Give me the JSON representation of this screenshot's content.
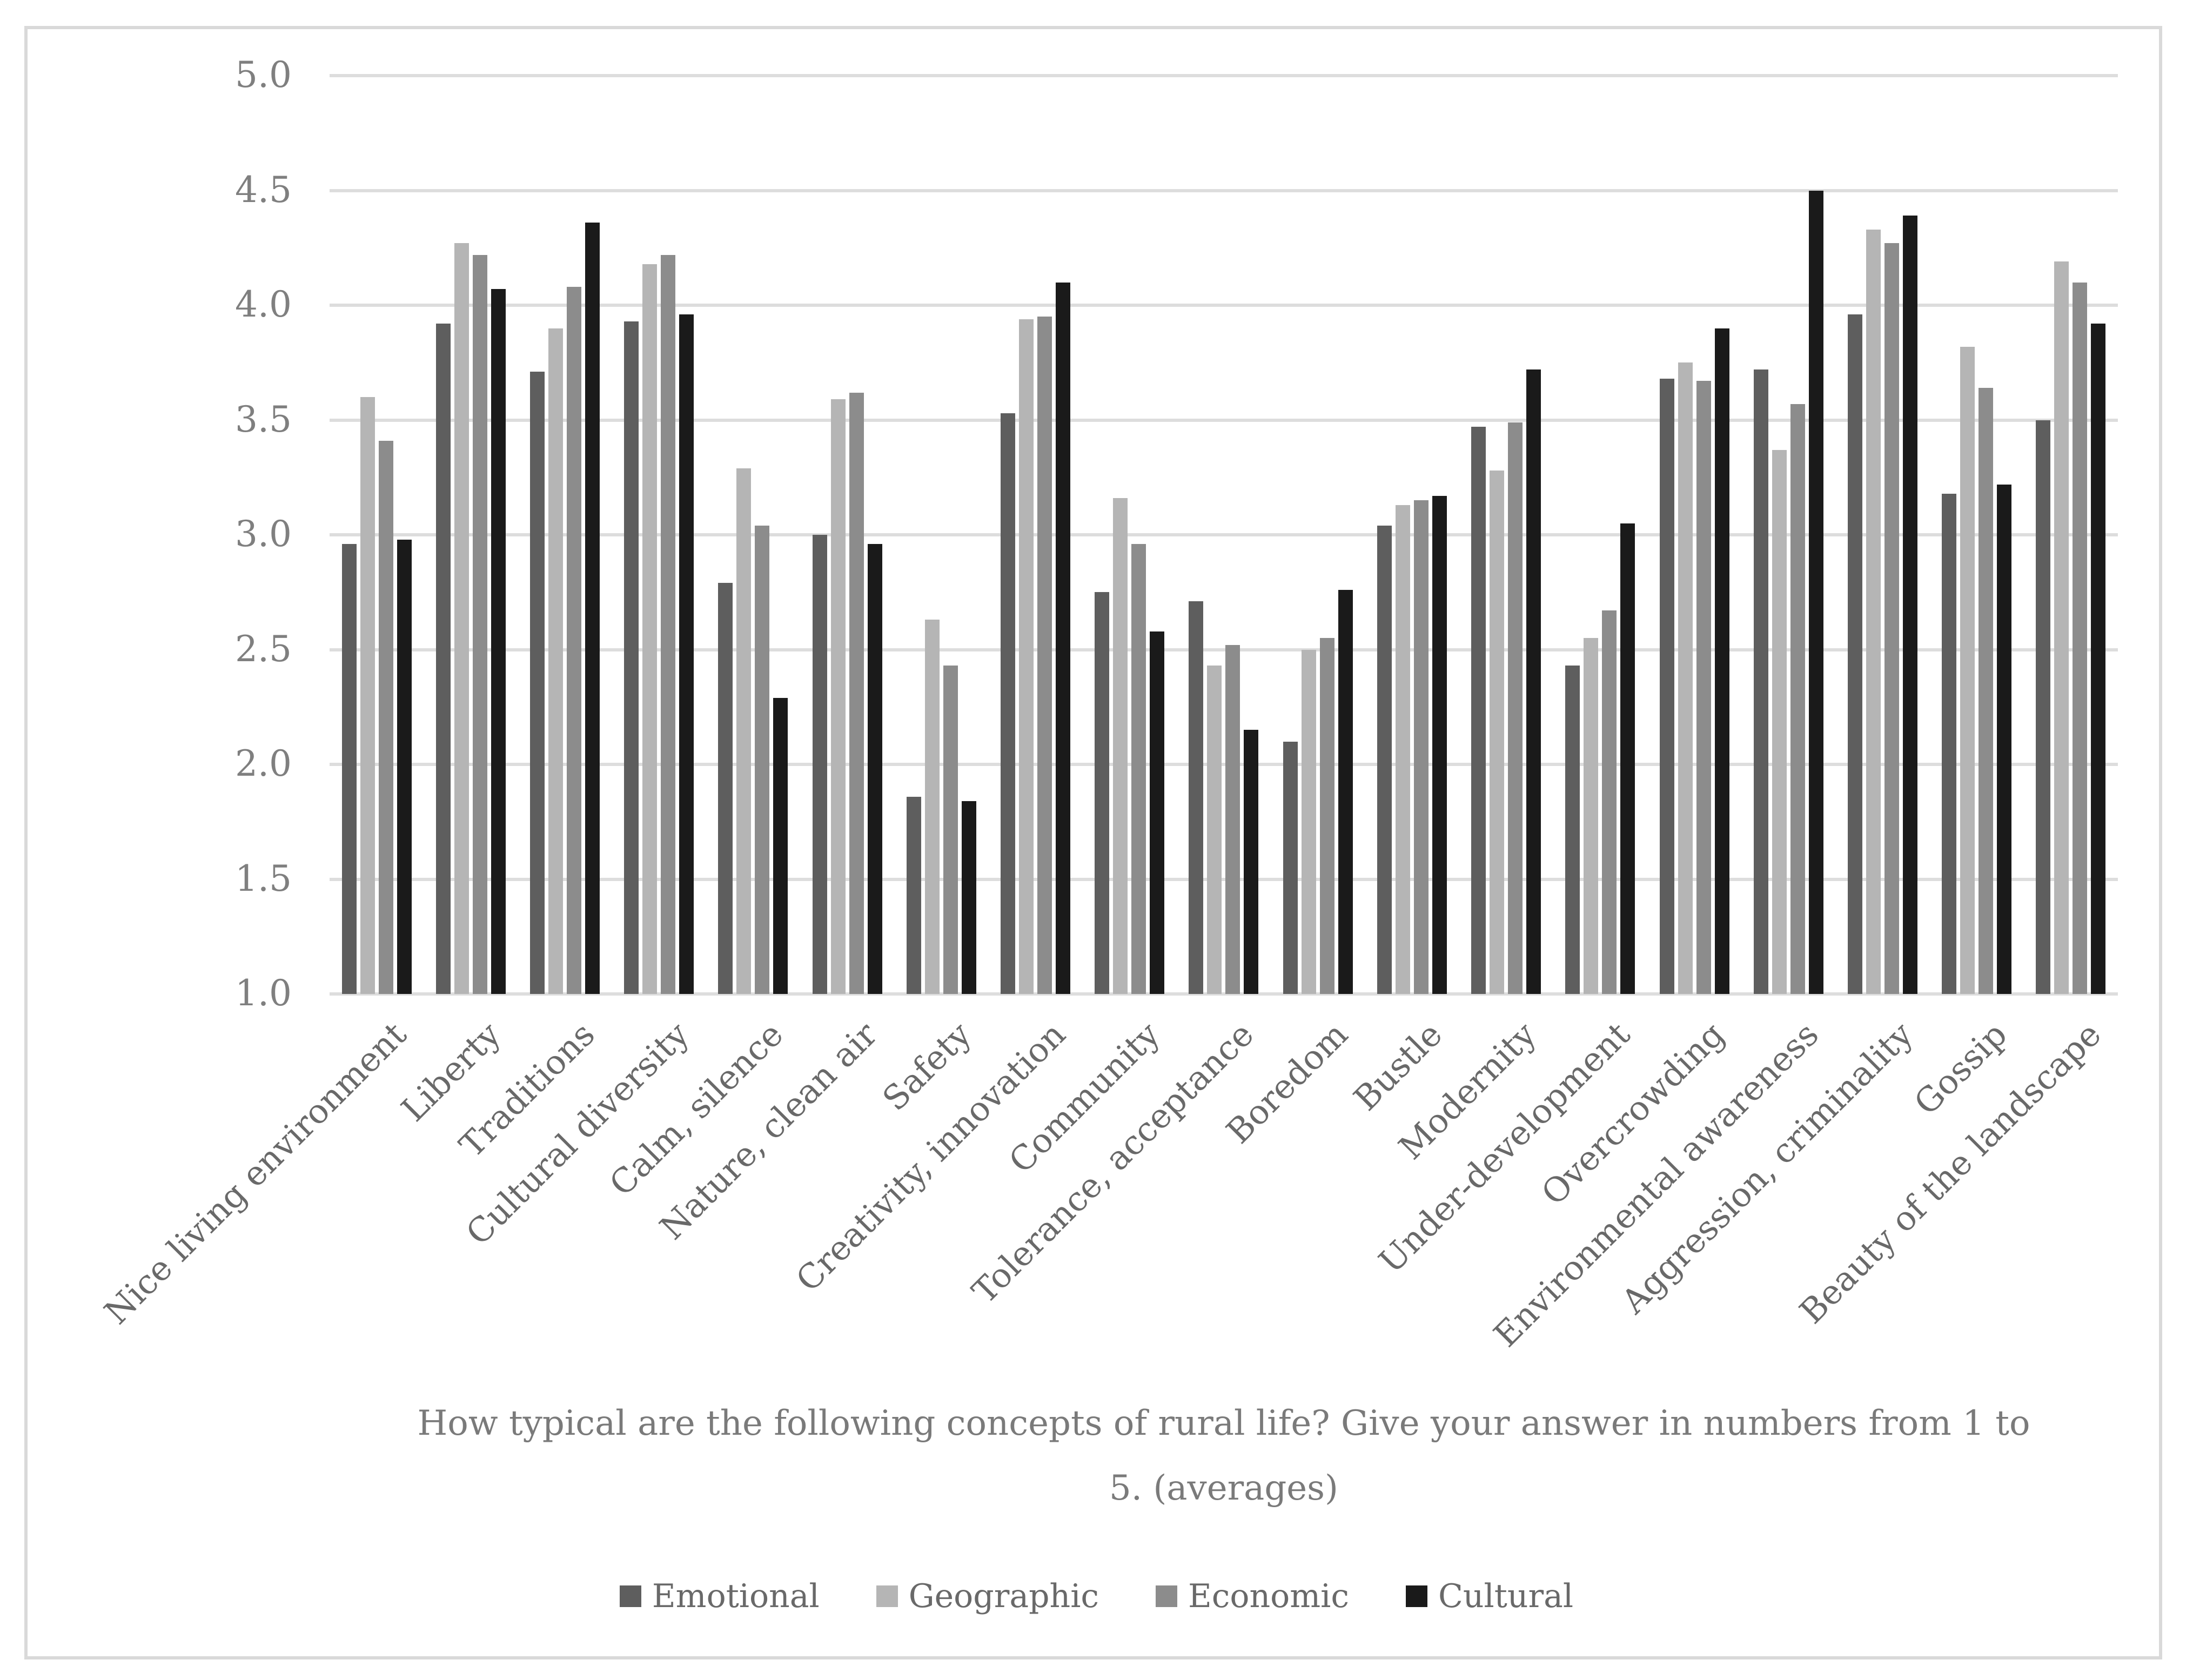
{
  "figure": {
    "title_line1": "How typical are the following concepts of rural life? Give your answer in numbers from 1 to",
    "title_line2": "5. (averages)"
  },
  "chart_data": {
    "type": "bar",
    "title": "How typical are the following concepts of rural life? Give your answer in numbers from 1 to 5. (averages)",
    "categories": [
      "Nice living environment",
      "Liberty",
      "Traditions",
      "Cultural diversity",
      "Calm, silence",
      "Nature, clean air",
      "Safety",
      "Creativity, innovation",
      "Community",
      "Tolerance, acceptance",
      "Boredom",
      "Bustle",
      "Modernity",
      "Under-development",
      "Overcrowding",
      "Environmental awareness",
      "Aggression, criminality",
      "Gossip",
      "Beauty of the landscape"
    ],
    "series": [
      {
        "name": "Emotional",
        "color": "#5E5E5E",
        "values": [
          2.96,
          3.92,
          3.71,
          3.93,
          2.79,
          3.0,
          1.86,
          3.53,
          2.75,
          2.71,
          2.1,
          3.04,
          3.47,
          2.43,
          3.68,
          3.72,
          3.96,
          3.18,
          3.5
        ]
      },
      {
        "name": "Geographic",
        "color": "#B5B5B5",
        "values": [
          3.6,
          4.27,
          3.9,
          4.18,
          3.29,
          3.59,
          2.63,
          3.94,
          3.16,
          2.43,
          2.5,
          3.13,
          3.28,
          2.55,
          3.75,
          3.37,
          4.33,
          3.82,
          4.19
        ]
      },
      {
        "name": "Economic",
        "color": "#8C8C8C",
        "values": [
          3.41,
          4.22,
          4.08,
          4.22,
          3.04,
          3.62,
          2.43,
          3.95,
          2.96,
          2.52,
          2.55,
          3.15,
          3.49,
          2.67,
          3.67,
          3.57,
          4.27,
          3.64,
          4.1
        ]
      },
      {
        "name": "Cultural",
        "color": "#1A1A1A",
        "values": [
          2.98,
          4.07,
          4.36,
          3.96,
          2.29,
          2.96,
          1.84,
          4.1,
          2.58,
          2.15,
          2.76,
          3.17,
          3.72,
          3.05,
          3.9,
          4.5,
          4.39,
          3.22,
          3.92
        ]
      }
    ],
    "ylim": [
      1.0,
      5.0
    ],
    "yticks": [
      "5.0",
      "4.5",
      "4.0",
      "3.5",
      "3.0",
      "2.5",
      "2.0",
      "1.5",
      "1.0"
    ],
    "grid": true,
    "legend_position": "bottom",
    "gridline_color": "#DDDDDD",
    "frame_color": "#D9D9D9",
    "tick_text_color": "#7F7F7F",
    "category_text_color": "#696969",
    "title_text_color": "#7A7A7A"
  }
}
